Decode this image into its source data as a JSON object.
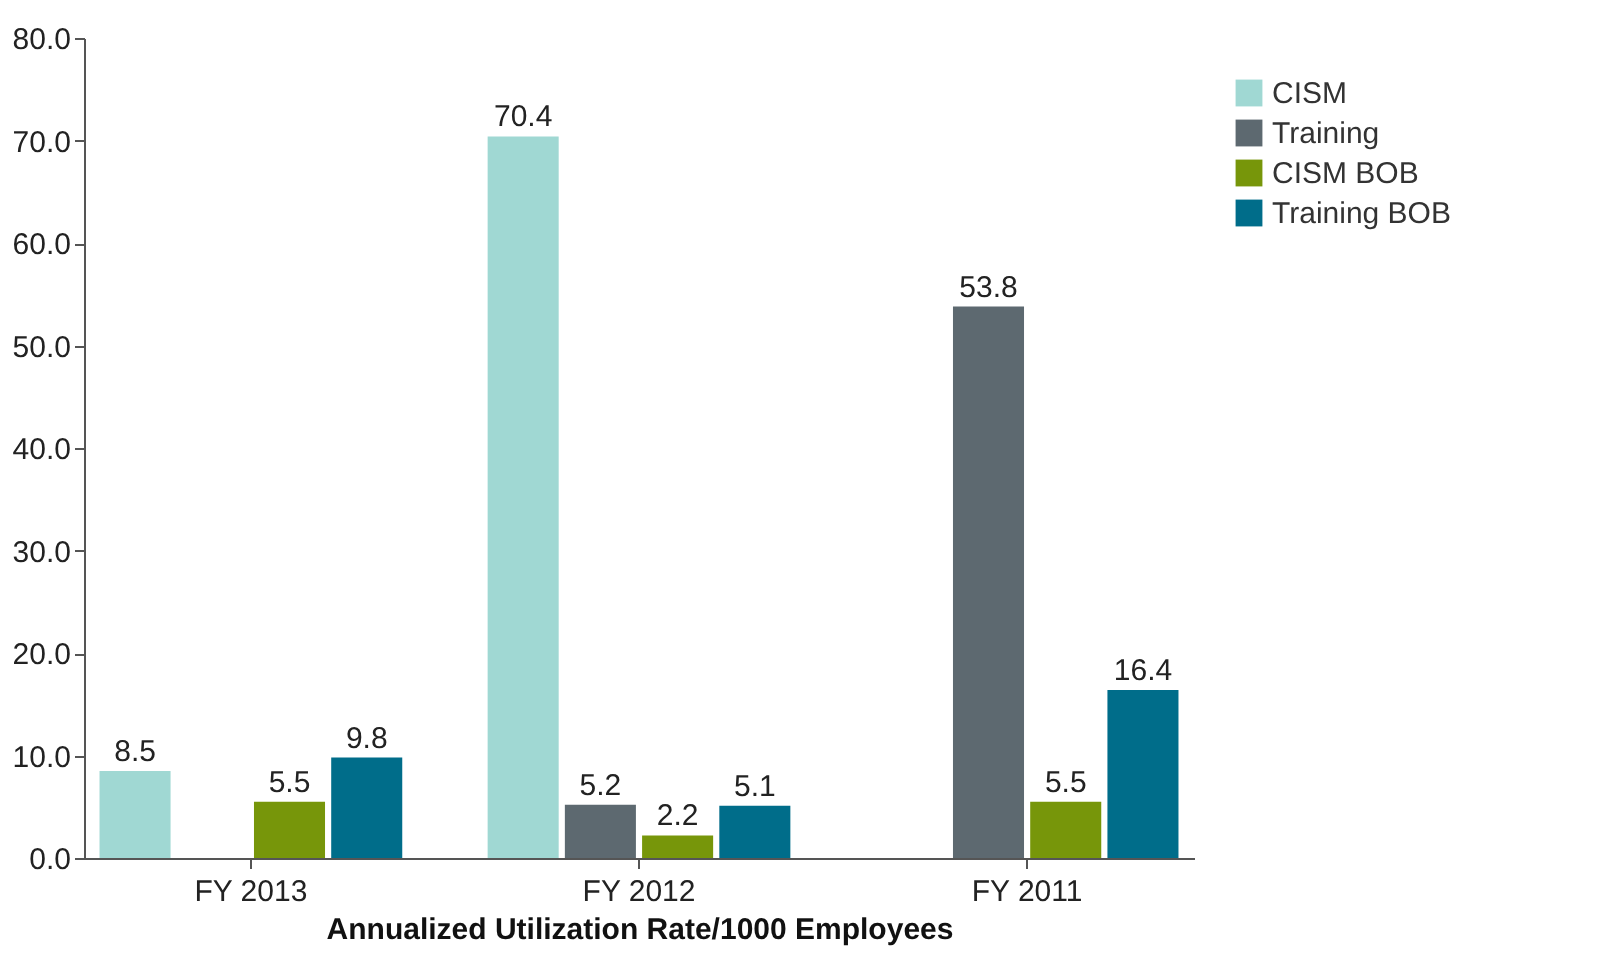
{
  "chart_data": {
    "type": "bar",
    "xlabel": "Annualized Utilization Rate/1000 Employees",
    "categories": [
      "FY 2013",
      "FY 2012",
      "FY 2011"
    ],
    "series": [
      {
        "name": "CISM",
        "color": "#a0d8d3",
        "values": [
          8.5,
          70.4,
          null
        ]
      },
      {
        "name": "Training",
        "color": "#5d6970",
        "values": [
          null,
          5.2,
          53.8
        ]
      },
      {
        "name": "CISM BOB",
        "color": "#77960a",
        "values": [
          5.5,
          2.2,
          5.5
        ]
      },
      {
        "name": "Training BOB",
        "color": "#006d8a",
        "values": [
          9.8,
          5.1,
          16.4
        ]
      }
    ],
    "ylim": [
      0,
      80
    ],
    "yticks": [
      {
        "value": 0,
        "label": "0.0"
      },
      {
        "value": 10,
        "label": "10.0"
      },
      {
        "value": 20,
        "label": "20.0"
      },
      {
        "value": 30,
        "label": "30.0"
      },
      {
        "value": 40,
        "label": "40.0"
      },
      {
        "value": 50,
        "label": "50.0"
      },
      {
        "value": 60,
        "label": "60.0"
      },
      {
        "value": 70,
        "label": "70.0"
      },
      {
        "value": 80,
        "label": "80.0"
      }
    ],
    "grid": false,
    "legend": "top right",
    "data_labels": true
  }
}
